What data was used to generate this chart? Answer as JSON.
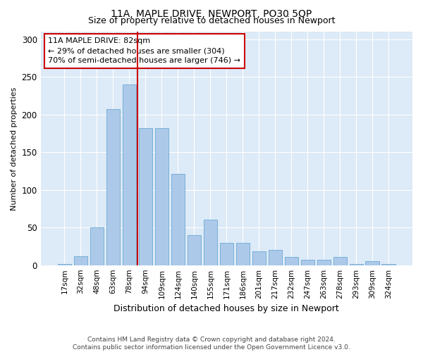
{
  "title": "11A, MAPLE DRIVE, NEWPORT, PO30 5QP",
  "subtitle": "Size of property relative to detached houses in Newport",
  "xlabel": "Distribution of detached houses by size in Newport",
  "ylabel": "Number of detached properties",
  "categories": [
    "17sqm",
    "32sqm",
    "48sqm",
    "63sqm",
    "78sqm",
    "94sqm",
    "109sqm",
    "124sqm",
    "140sqm",
    "155sqm",
    "171sqm",
    "186sqm",
    "201sqm",
    "217sqm",
    "232sqm",
    "247sqm",
    "263sqm",
    "278sqm",
    "293sqm",
    "309sqm",
    "324sqm"
  ],
  "values": [
    2,
    12,
    50,
    207,
    240,
    182,
    182,
    121,
    40,
    60,
    30,
    30,
    18,
    20,
    11,
    7,
    7,
    11,
    2,
    5,
    2
  ],
  "bar_color": "#adc9e9",
  "bar_edge_color": "#6aaad4",
  "vline_x": 4.5,
  "vline_color": "#cc0000",
  "annotation_text": "11A MAPLE DRIVE: 82sqm\n← 29% of detached houses are smaller (304)\n70% of semi-detached houses are larger (746) →",
  "annotation_box_color": "#ffffff",
  "annotation_box_edge_color": "#cc0000",
  "ylim": [
    0,
    310
  ],
  "yticks": [
    0,
    50,
    100,
    150,
    200,
    250,
    300
  ],
  "footer_line1": "Contains HM Land Registry data © Crown copyright and database right 2024.",
  "footer_line2": "Contains public sector information licensed under the Open Government Licence v3.0.",
  "bg_color": "#ddeaf7",
  "fig_bg_color": "#ffffff",
  "title_fontsize": 10,
  "subtitle_fontsize": 9,
  "annot_fontsize": 8,
  "xlabel_fontsize": 9,
  "ylabel_fontsize": 8,
  "tick_fontsize": 7.5,
  "ytick_fontsize": 8.5
}
